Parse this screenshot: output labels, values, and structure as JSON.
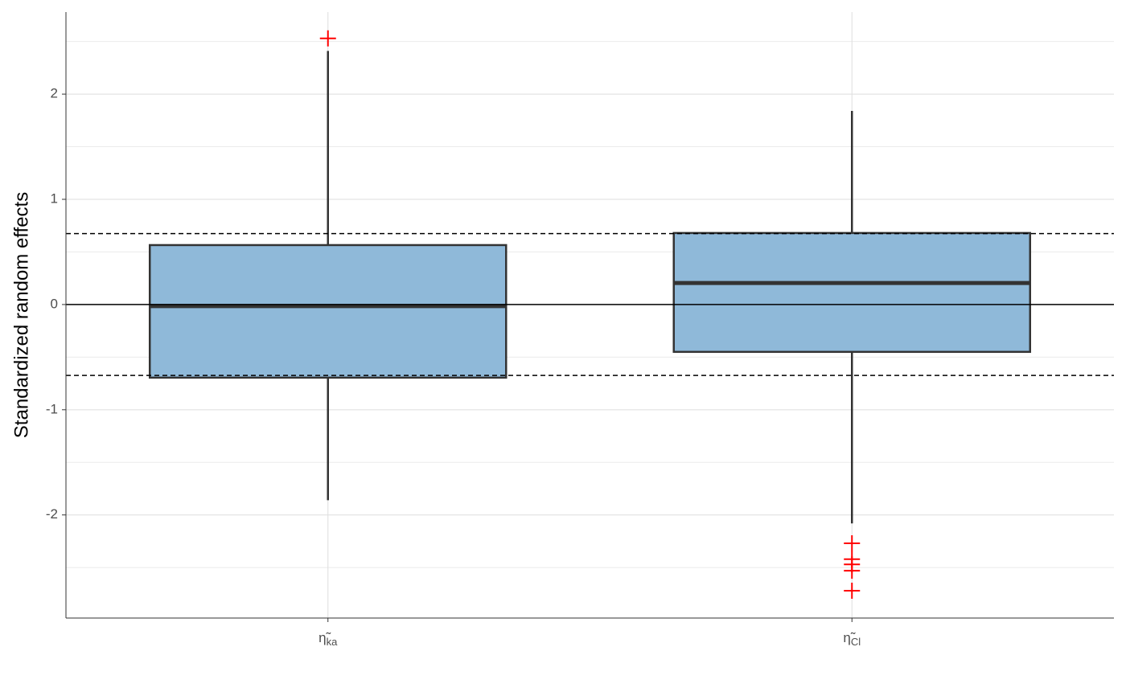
{
  "chart_data": {
    "type": "box",
    "ylabel": "Standardized random effects",
    "categories": [
      {
        "symbol": "η̃",
        "subscript": "ka"
      },
      {
        "symbol": "η̃",
        "subscript": "Cl"
      }
    ],
    "boxes": [
      {
        "low": -1.86,
        "q1": -0.695,
        "median": -0.015,
        "q3": 0.565,
        "high": 2.41,
        "outliers": [
          2.53
        ]
      },
      {
        "low": -2.08,
        "q1": -0.45,
        "median": 0.205,
        "q3": 0.68,
        "high": 1.84,
        "outliers": [
          -2.27,
          -2.42,
          -2.47,
          -2.53,
          -2.72
        ]
      }
    ],
    "color": "#8fb9d9",
    "outlier_color": "#ff0000",
    "ylim": [
      -2.98,
      2.78
    ],
    "yticks": [
      -2,
      -1,
      0,
      1,
      2
    ],
    "yminor": [
      -2.5,
      -1.5,
      -0.5,
      0.5,
      1.5,
      2.5
    ],
    "grid": true,
    "reference_lines": [
      {
        "value": 0,
        "style": "solid"
      },
      {
        "value": 0.674,
        "style": "dashed"
      },
      {
        "value": -0.674,
        "style": "dashed"
      }
    ]
  }
}
